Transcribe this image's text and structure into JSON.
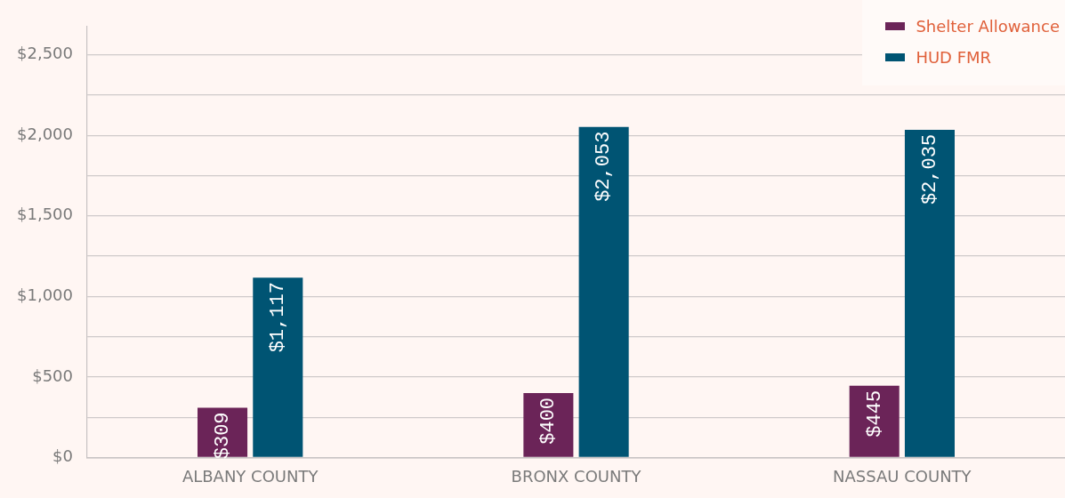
{
  "chart_data": {
    "type": "bar",
    "categories": [
      "ALBANY COUNTY",
      "BRONX COUNTY",
      "NASSAU COUNTY"
    ],
    "series": [
      {
        "name": "Shelter Allowance",
        "color": "#6b2458",
        "values": [
          309,
          400,
          445
        ],
        "value_labels": [
          "$309",
          "$400",
          "$445"
        ]
      },
      {
        "name": "HUD FMR",
        "color": "#005473",
        "values": [
          1117,
          2053,
          2035
        ],
        "value_labels": [
          "$1,117",
          "$2,053",
          "$2,035"
        ]
      }
    ],
    "ylim": [
      0,
      2675
    ],
    "yticks": [
      {
        "value": 0,
        "label": "$0"
      },
      {
        "value": 250,
        "label": null
      },
      {
        "value": 500,
        "label": "$500"
      },
      {
        "value": 750,
        "label": null
      },
      {
        "value": 1000,
        "label": "$1,000"
      },
      {
        "value": 1250,
        "label": null
      },
      {
        "value": 1500,
        "label": "$1,500"
      },
      {
        "value": 1750,
        "label": null
      },
      {
        "value": 2000,
        "label": "$2,000"
      },
      {
        "value": 2250,
        "label": null
      },
      {
        "value": 2500,
        "label": "$2,500"
      }
    ],
    "grid": "y",
    "legend": "top right"
  }
}
